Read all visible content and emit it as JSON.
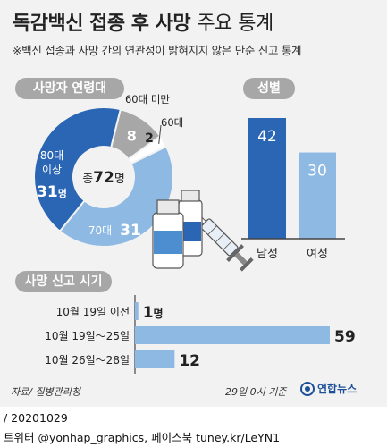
{
  "header": {
    "title_bold": "독감백신 접종 후 사망",
    "title_light": "주요 통계",
    "subtitle": "※백신 접종과 사망 간의 연관성이 밝혀지지 않은 단순 신고 통계"
  },
  "sections": {
    "age": "사망자 연령대",
    "gender": "성별",
    "time": "사망 신고 시기"
  },
  "colors": {
    "dark_blue": "#2a66b3",
    "mid_blue": "#4c8ed0",
    "light_blue": "#8db9e3",
    "gray": "#a7a7a7",
    "background": "#f2f2f2"
  },
  "chart_data": [
    {
      "type": "pie",
      "title": "사망자 연령대",
      "center_label": {
        "prefix": "총",
        "value": "72",
        "unit": "명"
      },
      "total": 72,
      "slices": [
        {
          "label": "80대 이상",
          "label_lines": [
            "80대",
            "이상"
          ],
          "value": 31,
          "value_text": "31",
          "unit": "명",
          "color": "#2a66b3"
        },
        {
          "label": "60대 미만",
          "label_lines": [
            "60대 미만"
          ],
          "value": 8,
          "value_text": "8",
          "unit": "",
          "color": "#a7a7a7"
        },
        {
          "label": "60대",
          "label_lines": [
            "60대"
          ],
          "value": 2,
          "value_text": "2",
          "unit": "",
          "color": "#ffffff"
        },
        {
          "label": "70대",
          "label_lines": [
            "70대"
          ],
          "value": 31,
          "value_text": "31",
          "unit": "",
          "color": "#8db9e3"
        }
      ]
    },
    {
      "type": "bar",
      "title": "성별",
      "categories": [
        "남성",
        "여성"
      ],
      "values": [
        42,
        30
      ],
      "colors": [
        "#2a66b3",
        "#8db9e3"
      ],
      "ylim": [
        0,
        42
      ]
    },
    {
      "type": "bar",
      "orientation": "horizontal",
      "title": "사망 신고 시기",
      "categories": [
        "10월 19일 이전",
        "10월 19일～25일",
        "10월 26일～28일"
      ],
      "values": [
        1,
        59,
        12
      ],
      "value_labels": [
        "1",
        "59",
        "12"
      ],
      "unit_labels": [
        "명",
        "",
        ""
      ],
      "colors": [
        "#8db9e3",
        "#8db9e3",
        "#8db9e3"
      ],
      "xlim": [
        0,
        59
      ]
    }
  ],
  "footer": {
    "source": "자료/ 질병관리청",
    "note": "29일 0시 기준",
    "logo": "연합뉴스"
  },
  "credits": {
    "line1": "/ 20201029",
    "line2": "트위터 @yonhap_graphics, 페이스북 tuney.kr/LeYN1"
  }
}
